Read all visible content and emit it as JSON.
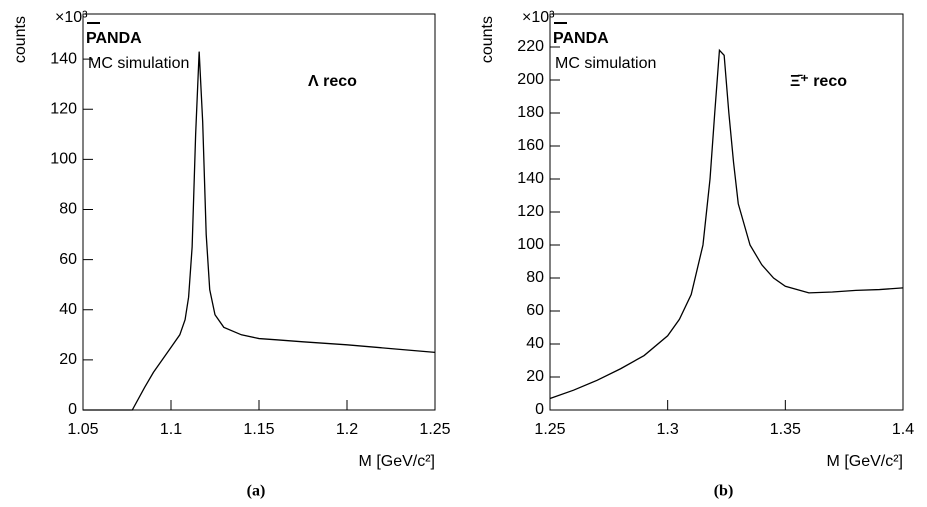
{
  "chart_data": [
    {
      "type": "line",
      "panel_label": "(a)",
      "brand": "PANDA",
      "subtitle": "MC simulation",
      "annotation": "Λ reco",
      "xlabel": "M [GeV/c²]",
      "ylabel": "counts",
      "y_multiplier": "×10³",
      "color": "#000000",
      "x": [
        1.05,
        1.06,
        1.07,
        1.078,
        1.085,
        1.09,
        1.095,
        1.1,
        1.105,
        1.108,
        1.11,
        1.112,
        1.114,
        1.116,
        1.118,
        1.12,
        1.122,
        1.125,
        1.13,
        1.14,
        1.15,
        1.16,
        1.175,
        1.2,
        1.225,
        1.25
      ],
      "values": [
        0,
        0,
        0,
        0,
        9,
        15,
        20,
        25,
        30,
        36,
        45,
        65,
        110,
        143,
        115,
        70,
        48,
        38,
        33,
        30,
        28.5,
        28,
        27.2,
        26,
        24.5,
        23
      ],
      "xlim": [
        1.05,
        1.25
      ],
      "xticks": [
        1.05,
        1.1,
        1.15,
        1.2,
        1.25
      ],
      "ylim": [
        0,
        158
      ],
      "yticks": [
        0,
        20,
        40,
        60,
        80,
        100,
        120,
        140
      ]
    },
    {
      "type": "line",
      "panel_label": "(b)",
      "brand": "PANDA",
      "subtitle": "MC simulation",
      "annotation": "Ξ̄⁺ reco",
      "xlabel": "M [GeV/c²]",
      "ylabel": "counts",
      "y_multiplier": "×10³",
      "color": "#000000",
      "x": [
        1.25,
        1.26,
        1.27,
        1.28,
        1.29,
        1.3,
        1.305,
        1.31,
        1.315,
        1.318,
        1.32,
        1.322,
        1.324,
        1.326,
        1.328,
        1.33,
        1.335,
        1.34,
        1.345,
        1.35,
        1.36,
        1.37,
        1.38,
        1.39,
        1.4
      ],
      "values": [
        7,
        12,
        18,
        25,
        33,
        45,
        55,
        70,
        100,
        140,
        180,
        218,
        215,
        180,
        150,
        125,
        100,
        88,
        80,
        75,
        71,
        71.5,
        72.5,
        73,
        74
      ],
      "xlim": [
        1.25,
        1.4
      ],
      "xticks": [
        1.25,
        1.3,
        1.35,
        1.4
      ],
      "ylim": [
        0,
        240
      ],
      "yticks": [
        0,
        20,
        40,
        60,
        80,
        100,
        120,
        140,
        160,
        180,
        200,
        220
      ]
    }
  ]
}
